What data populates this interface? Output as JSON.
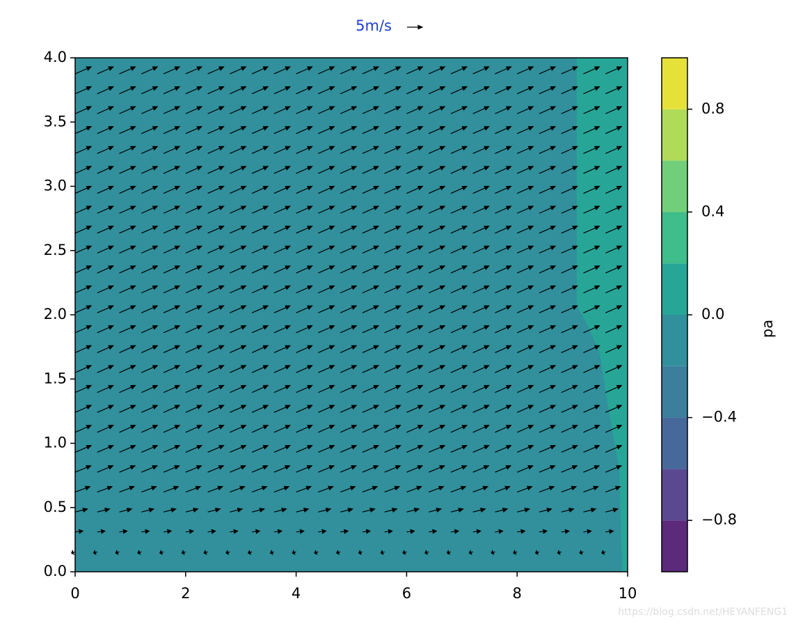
{
  "chart_data": {
    "type": "contour-quiver",
    "xlim": [
      0,
      10
    ],
    "ylim": [
      0,
      4
    ],
    "xticks": [
      0,
      2,
      4,
      6,
      8,
      10
    ],
    "yticks": [
      {
        "value": 0,
        "label": "0.0"
      },
      0.5,
      {
        "value": 1,
        "label": "1.0"
      },
      1.5,
      {
        "value": 2,
        "label": "2.0"
      },
      2.5,
      {
        "value": 3,
        "label": "3.0"
      },
      3.5,
      {
        "value": 4,
        "label": "4.0"
      }
    ],
    "levels": [
      -1,
      -0.8,
      -0.6,
      -0.4,
      -0.2,
      0,
      0.2,
      0.4,
      0.6,
      0.8,
      1
    ],
    "colors": [
      "#5b2a7b",
      "#5a4991",
      "#47689b",
      "#3b7f9d",
      "#31909c",
      "#27a698",
      "#3fbd8a",
      "#72cf79",
      "#b0db58",
      "#e6e139"
    ],
    "background_band": 4,
    "regions": [
      {
        "band": 5,
        "x": [
          9.08,
          9.08,
          9.3,
          9.5,
          9.6,
          9.75,
          9.85,
          9.9,
          10,
          10
        ],
        "y": [
          4,
          2.07,
          1.9,
          1.69,
          1.41,
          1.03,
          0.8,
          0,
          0,
          4
        ]
      }
    ],
    "colorbar_label": "pa",
    "colorbar_ticks": [
      {
        "value": -0.8,
        "label": "−0.8"
      },
      {
        "value": -0.4,
        "label": "−0.4"
      },
      {
        "value": 0,
        "label": "0.0"
      },
      {
        "value": 0.4,
        "label": "0.4"
      },
      {
        "value": 0.8,
        "label": "0.8"
      }
    ],
    "quiver": {
      "x": [
        0,
        0.4,
        0.8,
        1.2,
        1.6,
        2,
        2.4,
        2.8,
        3.2,
        3.6,
        4,
        4.4,
        4.8,
        5.2,
        5.6,
        6,
        6.4,
        6.8,
        7.2,
        7.6,
        8,
        8.4,
        8.8,
        9.2,
        9.6
      ],
      "y": [
        0.155,
        0.31,
        0.465,
        0.62,
        0.775,
        0.93,
        1.085,
        1.24,
        1.395,
        1.55,
        1.705,
        1.86,
        2.015,
        2.17,
        2.325,
        2.48,
        2.635,
        2.79,
        2.945,
        3.1,
        3.255,
        3.41,
        3.565,
        3.72,
        3.875
      ],
      "u": [
        -1.2,
        2.5,
        4,
        4.8,
        5.1,
        5.2,
        5.2,
        5.2,
        5.2,
        5.2,
        5.2,
        5.2,
        5.2,
        5.2,
        5.2,
        5.2,
        5.2,
        5.2,
        5.2,
        5.2,
        5.2,
        5.2,
        5.2,
        5.2,
        5.2
      ],
      "v": [
        -0.4,
        0.3,
        1,
        1.8,
        2.1,
        2.2,
        2.3,
        2.3,
        2.3,
        2.3,
        2.3,
        2.3,
        2.3,
        2.3,
        2.3,
        2.3,
        2.3,
        2.3,
        2.3,
        2.3,
        2.3,
        2.3,
        2.3,
        2.3,
        2.3
      ]
    },
    "key_label": "5m/s",
    "key_u": 5,
    "key_color": "#1a3fd6",
    "watermark": "https://blog.csdn.net/HEYANFENG1"
  }
}
